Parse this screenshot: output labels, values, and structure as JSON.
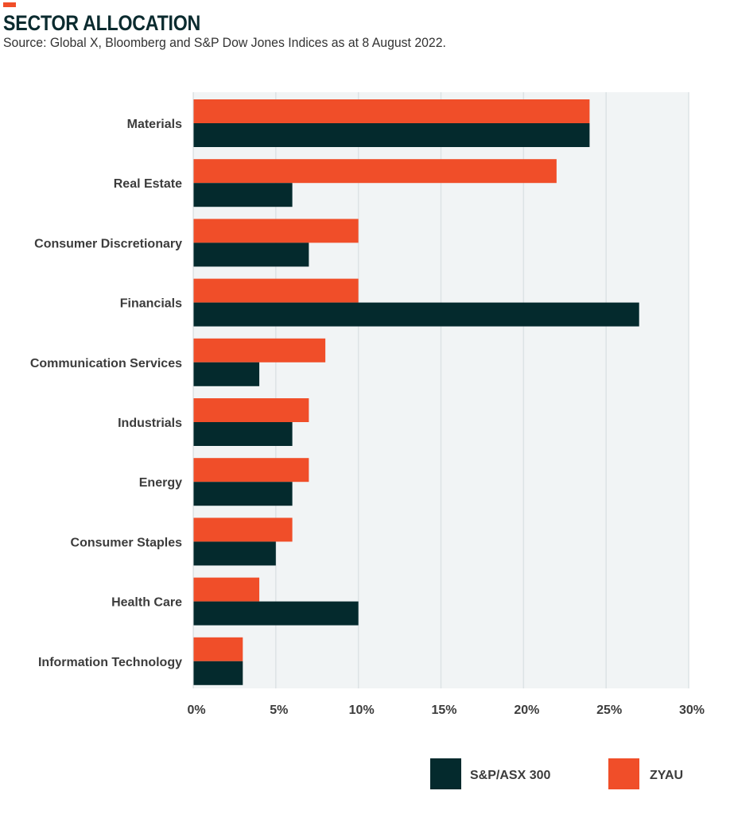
{
  "header": {
    "title": "SECTOR ALLOCATION",
    "subtitle": "Source: Global X, Bloomberg and S&P Dow Jones Indices as at 8 August 2022."
  },
  "colors": {
    "accent": "#f04e29",
    "zyau": "#f04e29",
    "sp_asx_300": "#042a2d",
    "plot_background": "#f1f4f5",
    "grid": "#dde3e5",
    "title": "#0b2b2f"
  },
  "chart_data": {
    "type": "bar",
    "orientation": "horizontal",
    "categories": [
      "Materials",
      "Real Estate",
      "Consumer Discretionary",
      "Financials",
      "Communication Services",
      "Industrials",
      "Energy",
      "Consumer Staples",
      "Health Care",
      "Information Technology"
    ],
    "series": [
      {
        "name": "ZYAU",
        "color": "#f04e29",
        "values": [
          24,
          22,
          10,
          10,
          8,
          7,
          7,
          6,
          4,
          3
        ]
      },
      {
        "name": "S&P/ASX 300",
        "color": "#042a2d",
        "values": [
          24,
          6,
          7,
          27,
          4,
          6,
          6,
          5,
          10,
          3
        ]
      }
    ],
    "xlim": [
      0,
      30
    ],
    "xticks": [
      "0%",
      "5%",
      "10%",
      "15%",
      "20%",
      "25%",
      "30%"
    ],
    "xtick_values": [
      0,
      5,
      10,
      15,
      20,
      25,
      30
    ],
    "grid": true,
    "legend_position": "bottom-right",
    "legend": [
      {
        "name": "S&P/ASX 300",
        "color": "#042a2d"
      },
      {
        "name": "ZYAU",
        "color": "#f04e29"
      }
    ]
  }
}
